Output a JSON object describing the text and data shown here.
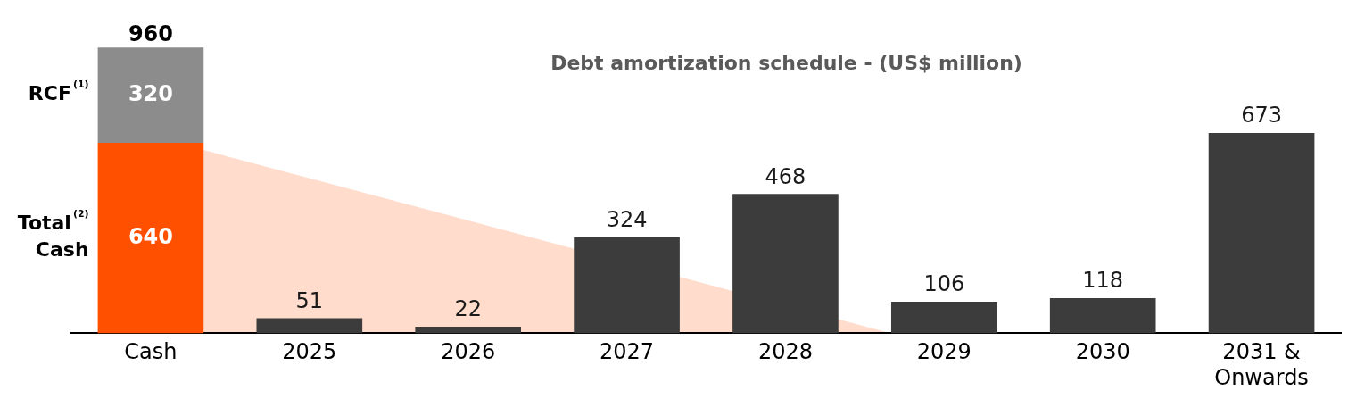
{
  "chart_data": {
    "type": "bar",
    "title": "Debt amortization schedule - (US$ million)",
    "categories": [
      "Cash",
      "2025",
      "2026",
      "2027",
      "2028",
      "2029",
      "2030",
      "2031 & Onwards"
    ],
    "stacked": true,
    "data_labels": true,
    "legend": false,
    "grid": false,
    "series": [
      {
        "name": "Total$^{(2)}$ Cash",
        "color": "#ff5000",
        "values": [
          640,
          null,
          null,
          null,
          null,
          null,
          null,
          null
        ]
      },
      {
        "name": "RCF$^{(1)}$",
        "color": "#8c8c8c",
        "values": [
          320,
          null,
          null,
          null,
          null,
          null,
          null,
          null
        ]
      },
      {
        "color": "#3c3c3c",
        "values": [
          null,
          51,
          22,
          324,
          468,
          106,
          118,
          673
        ]
      }
    ],
    "totals": [
      "960",
      null,
      null,
      null,
      null,
      null,
      null,
      null
    ]
  }
}
